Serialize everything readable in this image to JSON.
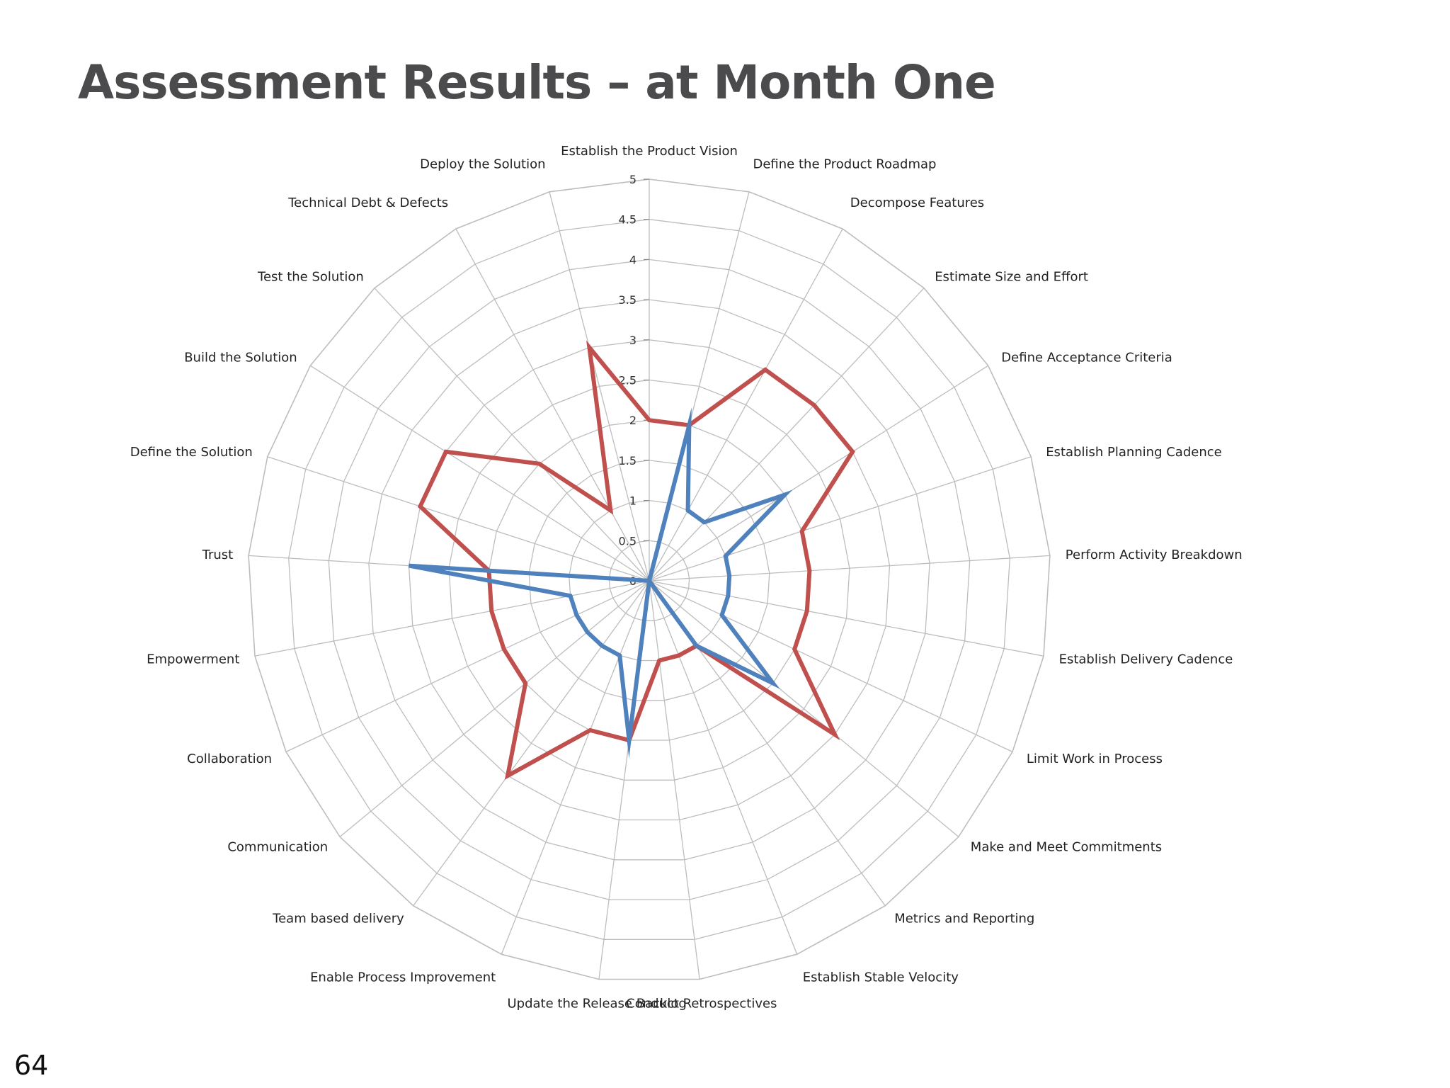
{
  "slide": {
    "title": "Assessment Results – at Month One",
    "page_number": "64"
  },
  "colors": {
    "title": "#4b4b4d",
    "grid": "#bdbdbd",
    "series_outer": "#c0504d",
    "series_inner": "#4f81bd"
  },
  "chart_data": {
    "type": "radar",
    "title": "",
    "axis_min": 0,
    "axis_max": 5,
    "tick_step": 0.5,
    "tick_labels": [
      "0",
      "0.5",
      "1",
      "1.5",
      "2",
      "2.5",
      "3",
      "3.5",
      "4",
      "4.5",
      "5"
    ],
    "grid": true,
    "legend": "none",
    "categories": [
      "Establish the Product Vision",
      "Define the Product Roadmap",
      "Decompose Features",
      "Estimate Size and Effort",
      "Define Acceptance Criteria",
      "Establish Planning Cadence",
      "Perform Activity Breakdown",
      "Establish Delivery Cadence",
      "Limit Work in Process",
      "Make and Meet Commitments",
      "Metrics and Reporting",
      "Establish Stable Velocity",
      "Conduct Retrospectives",
      "Update the Release Backlog",
      "Enable Process Improvement",
      "Team based delivery",
      "Communication",
      "Collaboration",
      "Empowerment",
      "Trust",
      "Define the Solution",
      "Build the Solution",
      "Test the Solution",
      "Technical Debt & Defects",
      "Deploy the Solution"
    ],
    "series": [
      {
        "color": "#c0504d",
        "values": [
          2.0,
          2.0,
          3.0,
          3.0,
          3.0,
          2.0,
          2.0,
          2.0,
          2.0,
          3.0,
          1.0,
          1.0,
          1.0,
          2.0,
          2.0,
          3.0,
          2.0,
          2.0,
          2.0,
          2.0,
          3.0,
          3.0,
          2.0,
          1.0,
          3.0
        ]
      },
      {
        "color": "#4f81bd",
        "values": [
          0.0,
          2.0,
          1.0,
          1.0,
          2.0,
          1.0,
          1.0,
          1.0,
          1.0,
          2.0,
          1.0,
          0.0,
          0.0,
          2.0,
          1.0,
          1.0,
          1.0,
          1.0,
          1.0,
          3.0,
          0.0,
          0.0,
          0.0,
          0.0,
          0.0
        ]
      }
    ]
  }
}
